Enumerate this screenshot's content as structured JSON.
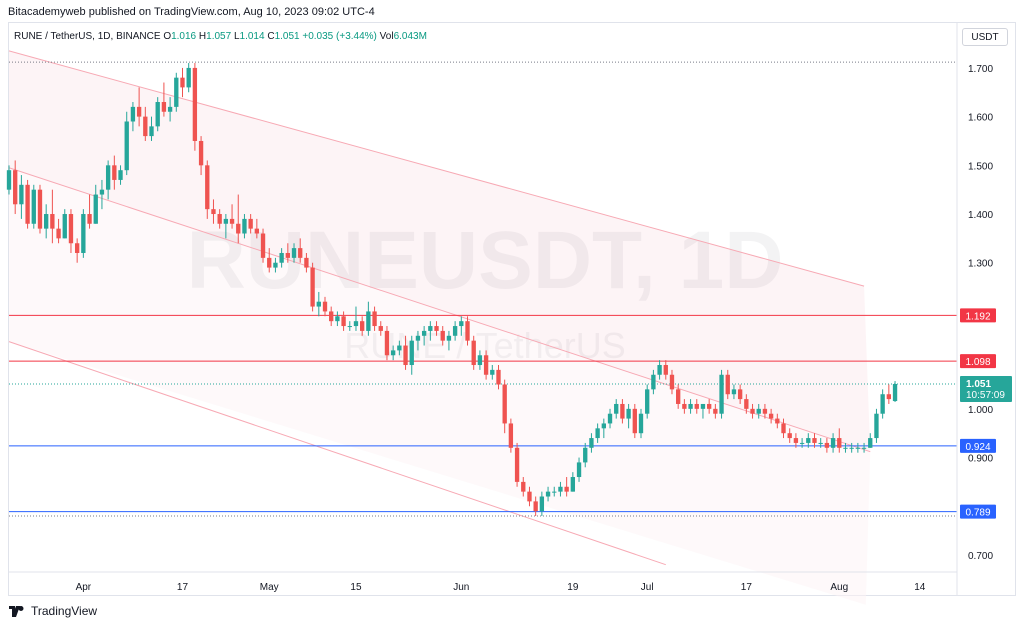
{
  "header": {
    "publisher": "Bitacademyweb published on TradingView.com, Aug 10, 2023 09:02 UTC-4"
  },
  "symbol": {
    "name": "RUNE / TetherUS, 1D, BINANCE",
    "open_label": "O",
    "open": "1.016",
    "high_label": "H",
    "high": "1.057",
    "low_label": "L",
    "low": "1.014",
    "close_label": "C",
    "close": "1.051",
    "change": "+0.035 (+3.44%)",
    "vol_label": "Vol",
    "vol": "6.043M"
  },
  "currency_button": "USDT",
  "watermark": {
    "ticker": "RUNEUSDT, 1D",
    "name": "RUNE / TetherUS"
  },
  "footer": {
    "brand": "TradingView"
  },
  "colors": {
    "up": "#26a69a",
    "down": "#ef5350",
    "resistance": "#f23645",
    "support": "#2962ff",
    "channel": "#f7a9b4"
  },
  "chart_data": {
    "type": "candlestick",
    "y_ticks": [
      "1.700",
      "1.600",
      "1.500",
      "1.400",
      "1.300",
      "1.000",
      "0.900",
      "0.700"
    ],
    "ylim": [
      0.665,
      1.745
    ],
    "x_ticks": [
      {
        "label": "Apr",
        "date": "2023-04-01"
      },
      {
        "label": "17",
        "date": "2023-04-17"
      },
      {
        "label": "May",
        "date": "2023-05-01"
      },
      {
        "label": "15",
        "date": "2023-05-15"
      },
      {
        "label": "Jun",
        "date": "2023-06-01"
      },
      {
        "label": "19",
        "date": "2023-06-19"
      },
      {
        "label": "Jul",
        "date": "2023-07-01"
      },
      {
        "label": "17",
        "date": "2023-07-17"
      },
      {
        "label": "Aug",
        "date": "2023-08-01"
      },
      {
        "label": "14",
        "date": "2023-08-14"
      }
    ],
    "xlim": [
      "2023-03-20",
      "2023-08-20"
    ],
    "horizontal_levels": [
      {
        "value": 1.192,
        "label": "1.192",
        "color": "#f23645"
      },
      {
        "value": 1.098,
        "label": "1.098",
        "color": "#f23645"
      },
      {
        "value": 0.924,
        "label": "0.924",
        "color": "#2962ff"
      },
      {
        "value": 0.789,
        "label": "0.789",
        "color": "#2962ff"
      }
    ],
    "dotted_levels": [
      1.712,
      1.051,
      0.78
    ],
    "current_price": {
      "value": 1.051,
      "label": "1.051",
      "countdown": "10:57:09"
    },
    "channel_lines": [
      {
        "from": [
          "2023-03-20",
          1.735
        ],
        "to": [
          "2023-08-05",
          1.252
        ]
      },
      {
        "from": [
          "2023-03-20",
          1.495
        ],
        "to": [
          "2023-08-06",
          0.912
        ]
      },
      {
        "from": [
          "2023-03-20",
          1.138
        ],
        "to": [
          "2023-07-04",
          0.68
        ]
      }
    ],
    "candles": [
      [
        "2023-03-20",
        1.45,
        1.5,
        1.44,
        1.49
      ],
      [
        "2023-03-21",
        1.49,
        1.51,
        1.4,
        1.42
      ],
      [
        "2023-03-22",
        1.42,
        1.48,
        1.39,
        1.46
      ],
      [
        "2023-03-23",
        1.46,
        1.47,
        1.37,
        1.38
      ],
      [
        "2023-03-24",
        1.38,
        1.46,
        1.37,
        1.45
      ],
      [
        "2023-03-25",
        1.45,
        1.46,
        1.36,
        1.37
      ],
      [
        "2023-03-26",
        1.37,
        1.42,
        1.35,
        1.4
      ],
      [
        "2023-03-27",
        1.4,
        1.45,
        1.34,
        1.37
      ],
      [
        "2023-03-28",
        1.37,
        1.39,
        1.34,
        1.35
      ],
      [
        "2023-03-29",
        1.35,
        1.41,
        1.35,
        1.4
      ],
      [
        "2023-03-30",
        1.4,
        1.41,
        1.32,
        1.34
      ],
      [
        "2023-03-31",
        1.34,
        1.35,
        1.3,
        1.32
      ],
      [
        "2023-04-01",
        1.32,
        1.41,
        1.31,
        1.4
      ],
      [
        "2023-04-02",
        1.4,
        1.44,
        1.37,
        1.38
      ],
      [
        "2023-04-03",
        1.38,
        1.46,
        1.38,
        1.44
      ],
      [
        "2023-04-04",
        1.44,
        1.47,
        1.41,
        1.45
      ],
      [
        "2023-04-05",
        1.45,
        1.51,
        1.43,
        1.5
      ],
      [
        "2023-04-06",
        1.5,
        1.52,
        1.45,
        1.47
      ],
      [
        "2023-04-07",
        1.47,
        1.5,
        1.46,
        1.49
      ],
      [
        "2023-04-08",
        1.49,
        1.61,
        1.48,
        1.59
      ],
      [
        "2023-04-09",
        1.59,
        1.63,
        1.57,
        1.62
      ],
      [
        "2023-04-10",
        1.62,
        1.66,
        1.58,
        1.6
      ],
      [
        "2023-04-11",
        1.6,
        1.62,
        1.55,
        1.56
      ],
      [
        "2023-04-12",
        1.56,
        1.6,
        1.55,
        1.58
      ],
      [
        "2023-04-13",
        1.58,
        1.64,
        1.57,
        1.63
      ],
      [
        "2023-04-14",
        1.63,
        1.67,
        1.6,
        1.61
      ],
      [
        "2023-04-15",
        1.61,
        1.64,
        1.59,
        1.62
      ],
      [
        "2023-04-16",
        1.62,
        1.69,
        1.61,
        1.68
      ],
      [
        "2023-04-17",
        1.68,
        1.7,
        1.64,
        1.66
      ],
      [
        "2023-04-18",
        1.66,
        1.71,
        1.65,
        1.7
      ],
      [
        "2023-04-19",
        1.7,
        1.71,
        1.53,
        1.55
      ],
      [
        "2023-04-20",
        1.55,
        1.56,
        1.48,
        1.5
      ],
      [
        "2023-04-21",
        1.5,
        1.51,
        1.39,
        1.41
      ],
      [
        "2023-04-22",
        1.41,
        1.43,
        1.38,
        1.4
      ],
      [
        "2023-04-23",
        1.4,
        1.41,
        1.37,
        1.38
      ],
      [
        "2023-04-24",
        1.38,
        1.4,
        1.35,
        1.39
      ],
      [
        "2023-04-25",
        1.39,
        1.42,
        1.37,
        1.38
      ],
      [
        "2023-04-26",
        1.38,
        1.44,
        1.34,
        1.36
      ],
      [
        "2023-04-27",
        1.36,
        1.4,
        1.35,
        1.39
      ],
      [
        "2023-04-28",
        1.39,
        1.4,
        1.36,
        1.37
      ],
      [
        "2023-04-29",
        1.37,
        1.39,
        1.35,
        1.36
      ],
      [
        "2023-04-30",
        1.36,
        1.37,
        1.3,
        1.31
      ],
      [
        "2023-05-01",
        1.31,
        1.33,
        1.28,
        1.29
      ],
      [
        "2023-05-02",
        1.29,
        1.31,
        1.28,
        1.3
      ],
      [
        "2023-05-03",
        1.3,
        1.33,
        1.29,
        1.32
      ],
      [
        "2023-05-04",
        1.32,
        1.34,
        1.3,
        1.31
      ],
      [
        "2023-05-05",
        1.31,
        1.34,
        1.3,
        1.33
      ],
      [
        "2023-05-06",
        1.33,
        1.35,
        1.3,
        1.31
      ],
      [
        "2023-05-07",
        1.31,
        1.32,
        1.28,
        1.29
      ],
      [
        "2023-05-08",
        1.29,
        1.3,
        1.2,
        1.21
      ],
      [
        "2023-05-09",
        1.21,
        1.24,
        1.19,
        1.22
      ],
      [
        "2023-05-10",
        1.22,
        1.23,
        1.19,
        1.2
      ],
      [
        "2023-05-11",
        1.2,
        1.21,
        1.17,
        1.18
      ],
      [
        "2023-05-12",
        1.18,
        1.2,
        1.17,
        1.19
      ],
      [
        "2023-05-13",
        1.19,
        1.2,
        1.16,
        1.17
      ],
      [
        "2023-05-14",
        1.17,
        1.18,
        1.16,
        1.17
      ],
      [
        "2023-05-15",
        1.17,
        1.21,
        1.16,
        1.18
      ],
      [
        "2023-05-16",
        1.18,
        1.19,
        1.15,
        1.16
      ],
      [
        "2023-05-17",
        1.16,
        1.22,
        1.15,
        1.2
      ],
      [
        "2023-05-18",
        1.2,
        1.21,
        1.16,
        1.17
      ],
      [
        "2023-05-19",
        1.17,
        1.18,
        1.15,
        1.16
      ],
      [
        "2023-05-20",
        1.16,
        1.17,
        1.1,
        1.11
      ],
      [
        "2023-05-21",
        1.11,
        1.13,
        1.1,
        1.12
      ],
      [
        "2023-05-22",
        1.12,
        1.14,
        1.11,
        1.13
      ],
      [
        "2023-05-23",
        1.13,
        1.15,
        1.08,
        1.09
      ],
      [
        "2023-05-24",
        1.09,
        1.15,
        1.07,
        1.14
      ],
      [
        "2023-05-25",
        1.14,
        1.16,
        1.12,
        1.15
      ],
      [
        "2023-05-26",
        1.15,
        1.17,
        1.13,
        1.16
      ],
      [
        "2023-05-27",
        1.16,
        1.18,
        1.14,
        1.17
      ],
      [
        "2023-05-28",
        1.17,
        1.18,
        1.15,
        1.16
      ],
      [
        "2023-05-29",
        1.16,
        1.17,
        1.13,
        1.14
      ],
      [
        "2023-05-30",
        1.14,
        1.16,
        1.12,
        1.15
      ],
      [
        "2023-05-31",
        1.15,
        1.18,
        1.14,
        1.17
      ],
      [
        "2023-06-01",
        1.17,
        1.19,
        1.15,
        1.18
      ],
      [
        "2023-06-02",
        1.18,
        1.19,
        1.13,
        1.14
      ],
      [
        "2023-06-03",
        1.14,
        1.15,
        1.08,
        1.09
      ],
      [
        "2023-06-04",
        1.09,
        1.12,
        1.08,
        1.11
      ],
      [
        "2023-06-05",
        1.11,
        1.12,
        1.06,
        1.07
      ],
      [
        "2023-06-06",
        1.07,
        1.09,
        1.06,
        1.08
      ],
      [
        "2023-06-07",
        1.08,
        1.09,
        1.04,
        1.05
      ],
      [
        "2023-06-08",
        1.05,
        1.06,
        0.95,
        0.97
      ],
      [
        "2023-06-09",
        0.97,
        0.98,
        0.91,
        0.92
      ],
      [
        "2023-06-10",
        0.92,
        0.93,
        0.84,
        0.85
      ],
      [
        "2023-06-11",
        0.85,
        0.86,
        0.82,
        0.83
      ],
      [
        "2023-06-12",
        0.83,
        0.84,
        0.8,
        0.81
      ],
      [
        "2023-06-13",
        0.81,
        0.82,
        0.78,
        0.79
      ],
      [
        "2023-06-14",
        0.79,
        0.83,
        0.78,
        0.82
      ],
      [
        "2023-06-15",
        0.82,
        0.84,
        0.81,
        0.83
      ],
      [
        "2023-06-16",
        0.83,
        0.84,
        0.82,
        0.83
      ],
      [
        "2023-06-17",
        0.83,
        0.85,
        0.82,
        0.84
      ],
      [
        "2023-06-18",
        0.84,
        0.86,
        0.82,
        0.83
      ],
      [
        "2023-06-19",
        0.83,
        0.87,
        0.83,
        0.86
      ],
      [
        "2023-06-20",
        0.86,
        0.9,
        0.85,
        0.89
      ],
      [
        "2023-06-21",
        0.89,
        0.93,
        0.88,
        0.92
      ],
      [
        "2023-06-22",
        0.92,
        0.95,
        0.91,
        0.94
      ],
      [
        "2023-06-23",
        0.94,
        0.97,
        0.93,
        0.96
      ],
      [
        "2023-06-24",
        0.96,
        0.98,
        0.94,
        0.97
      ],
      [
        "2023-06-25",
        0.97,
        1.0,
        0.96,
        0.99
      ],
      [
        "2023-06-26",
        0.99,
        1.02,
        0.98,
        1.01
      ],
      [
        "2023-06-27",
        1.01,
        1.02,
        0.97,
        0.98
      ],
      [
        "2023-06-28",
        0.98,
        1.01,
        0.96,
        1.0
      ],
      [
        "2023-06-29",
        1.0,
        1.01,
        0.94,
        0.95
      ],
      [
        "2023-06-30",
        0.95,
        1.0,
        0.94,
        0.99
      ],
      [
        "2023-07-01",
        0.99,
        1.05,
        0.98,
        1.04
      ],
      [
        "2023-07-02",
        1.04,
        1.08,
        1.03,
        1.07
      ],
      [
        "2023-07-03",
        1.07,
        1.1,
        1.06,
        1.09
      ],
      [
        "2023-07-04",
        1.09,
        1.1,
        1.06,
        1.07
      ],
      [
        "2023-07-05",
        1.07,
        1.08,
        1.03,
        1.04
      ],
      [
        "2023-07-06",
        1.04,
        1.05,
        1.0,
        1.01
      ],
      [
        "2023-07-07",
        1.01,
        1.02,
        0.99,
        1.0
      ],
      [
        "2023-07-08",
        1.0,
        1.02,
        0.99,
        1.01
      ],
      [
        "2023-07-09",
        1.01,
        1.02,
        0.99,
        1.0
      ],
      [
        "2023-07-10",
        1.0,
        1.01,
        0.98,
        1.01
      ],
      [
        "2023-07-11",
        1.01,
        1.02,
        0.99,
        1.0
      ],
      [
        "2023-07-12",
        1.0,
        1.01,
        0.98,
        0.99
      ],
      [
        "2023-07-13",
        0.99,
        1.08,
        0.98,
        1.07
      ],
      [
        "2023-07-14",
        1.07,
        1.08,
        1.02,
        1.03
      ],
      [
        "2023-07-15",
        1.03,
        1.05,
        1.02,
        1.04
      ],
      [
        "2023-07-16",
        1.04,
        1.05,
        1.01,
        1.02
      ],
      [
        "2023-07-17",
        1.02,
        1.03,
        0.99,
        1.0
      ],
      [
        "2023-07-18",
        1.0,
        1.01,
        0.98,
        0.99
      ],
      [
        "2023-07-19",
        0.99,
        1.01,
        0.98,
        1.0
      ],
      [
        "2023-07-20",
        1.0,
        1.01,
        0.98,
        0.99
      ],
      [
        "2023-07-21",
        0.99,
        1.0,
        0.97,
        0.98
      ],
      [
        "2023-07-22",
        0.98,
        0.99,
        0.96,
        0.97
      ],
      [
        "2023-07-23",
        0.97,
        0.98,
        0.94,
        0.95
      ],
      [
        "2023-07-24",
        0.95,
        0.96,
        0.93,
        0.94
      ],
      [
        "2023-07-25",
        0.94,
        0.95,
        0.92,
        0.93
      ],
      [
        "2023-07-26",
        0.93,
        0.94,
        0.92,
        0.93
      ],
      [
        "2023-07-27",
        0.93,
        0.95,
        0.92,
        0.94
      ],
      [
        "2023-07-28",
        0.94,
        0.95,
        0.92,
        0.93
      ],
      [
        "2023-07-29",
        0.93,
        0.94,
        0.92,
        0.93
      ],
      [
        "2023-07-30",
        0.93,
        0.94,
        0.91,
        0.92
      ],
      [
        "2023-07-31",
        0.92,
        0.95,
        0.91,
        0.94
      ],
      [
        "2023-08-01",
        0.94,
        0.96,
        0.91,
        0.92
      ],
      [
        "2023-08-02",
        0.92,
        0.93,
        0.91,
        0.92
      ],
      [
        "2023-08-03",
        0.92,
        0.93,
        0.91,
        0.92
      ],
      [
        "2023-08-04",
        0.92,
        0.93,
        0.91,
        0.92
      ],
      [
        "2023-08-05",
        0.92,
        0.93,
        0.91,
        0.92
      ],
      [
        "2023-08-06",
        0.92,
        0.95,
        0.92,
        0.94
      ],
      [
        "2023-08-07",
        0.94,
        1.0,
        0.93,
        0.99
      ],
      [
        "2023-08-08",
        0.99,
        1.04,
        0.98,
        1.03
      ],
      [
        "2023-08-09",
        1.03,
        1.05,
        1.01,
        1.02
      ],
      [
        "2023-08-10",
        1.016,
        1.057,
        1.014,
        1.051
      ]
    ]
  }
}
